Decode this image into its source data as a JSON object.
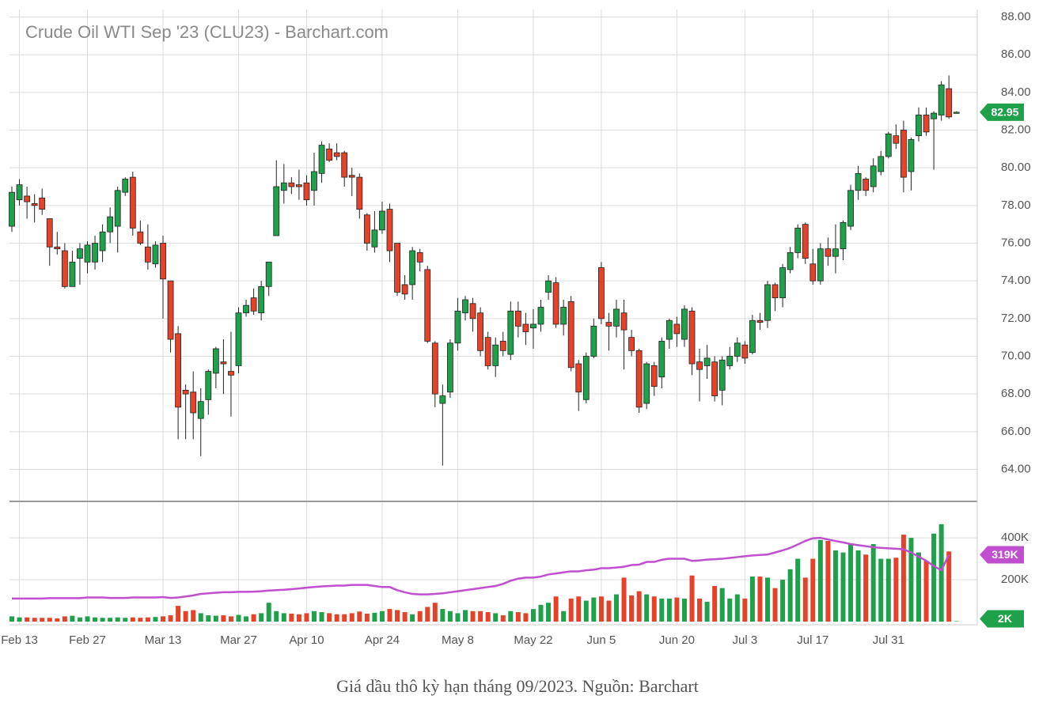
{
  "chart_data": {
    "type": "candlestick",
    "title": "Crude Oil WTI Sep '23 (CLU23) - Barchart.com",
    "caption": "Giá dầu thô kỳ hạn tháng 09/2023. Nguồn: Barchart",
    "up_color": "#1fa04a",
    "down_color": "#e4432a",
    "grid": true,
    "categories": [
      null,
      "Feb 13",
      null,
      null,
      null,
      null,
      null,
      null,
      null,
      null,
      "Feb 27",
      null,
      null,
      null,
      null,
      null,
      null,
      null,
      null,
      null,
      "Mar 13",
      null,
      null,
      null,
      null,
      null,
      null,
      null,
      null,
      null,
      "Mar 27",
      null,
      null,
      null,
      null,
      null,
      null,
      null,
      null,
      "Apr 10",
      null,
      null,
      null,
      null,
      null,
      null,
      null,
      null,
      null,
      "Apr 24",
      null,
      null,
      null,
      null,
      null,
      null,
      null,
      null,
      null,
      "May 8",
      null,
      null,
      null,
      null,
      null,
      null,
      null,
      null,
      null,
      "May 22",
      null,
      null,
      null,
      null,
      null,
      null,
      null,
      null,
      "Jun 5",
      null,
      null,
      null,
      null,
      null,
      null,
      null,
      null,
      null,
      "Jun 20",
      null,
      null,
      null,
      null,
      null,
      null,
      null,
      null,
      "Jul 3",
      null,
      null,
      null,
      null,
      null,
      null,
      null,
      null,
      "Jul 17",
      null,
      null,
      null,
      null,
      null,
      null,
      null,
      null,
      null,
      "Jul 31",
      null,
      null,
      null,
      null,
      null,
      null,
      null,
      null,
      null
    ],
    "open": [
      76.9,
      78.3,
      78.5,
      78.1,
      78.4,
      77.3,
      75.8,
      75.6,
      73.7,
      75.2,
      75.0,
      75.0,
      75.6,
      76.6,
      76.9,
      78.7,
      79.5,
      76.6,
      75.8,
      74.9,
      76.0,
      74.0,
      71.2,
      68.2,
      68.1,
      66.7,
      67.7,
      69.1,
      69.7,
      69.2,
      69.5,
      72.3,
      73.1,
      72.3,
      73.7,
      76.4,
      78.8,
      79.2,
      79.1,
      79.2,
      78.8,
      79.7,
      81.0,
      80.8,
      80.8,
      79.6,
      79.5,
      77.5,
      75.8,
      76.7,
      77.8,
      76.0,
      73.8,
      73.8,
      75.5,
      74.6,
      70.7,
      67.5,
      68.1,
      70.7,
      72.3,
      72.8,
      72.3,
      71.0,
      69.5,
      70.8,
      70.1,
      72.4,
      71.7,
      71.5,
      71.7,
      73.4,
      73.9,
      71.7,
      72.9,
      69.6,
      67.7,
      70.0,
      74.7,
      71.8,
      71.6,
      72.3,
      71.0,
      70.3,
      67.5,
      69.5,
      68.9,
      70.9,
      71.7,
      70.9,
      72.4,
      69.7,
      69.5,
      69.7,
      68.2,
      69.5,
      70.0,
      70.6,
      70.2,
      71.9,
      71.9,
      73.8,
      73.1,
      74.6,
      75.5,
      77.0,
      74.9,
      74.0,
      75.7,
      75.3,
      75.7,
      76.9,
      78.8,
      79.4,
      79.0,
      79.8,
      80.6,
      81.7,
      82.0,
      79.8,
      81.7,
      82.8,
      82.6,
      82.8,
      84.2,
      82.9
    ],
    "high": [
      79.0,
      79.4,
      79.0,
      78.6,
      78.9,
      77.3,
      76.6,
      76.0,
      75.6,
      76.0,
      76.1,
      76.4,
      77.0,
      77.9,
      79.0,
      79.5,
      79.8,
      77.2,
      77.0,
      76.1,
      76.4,
      74.0,
      71.6,
      68.5,
      69.2,
      68.3,
      69.3,
      70.5,
      70.9,
      71.3,
      72.6,
      73.0,
      73.6,
      74.0,
      75.0,
      80.4,
      80.2,
      79.5,
      79.9,
      79.6,
      80.8,
      81.4,
      81.3,
      81.3,
      80.9,
      80.0,
      79.7,
      77.6,
      77.7,
      78.2,
      78.1,
      76.0,
      74.3,
      75.8,
      75.7,
      74.8,
      70.8,
      68.5,
      70.9,
      73.1,
      73.2,
      73.1,
      72.6,
      71.3,
      71.0,
      71.3,
      72.9,
      72.9,
      72.3,
      72.5,
      73.0,
      74.3,
      74.2,
      73.0,
      73.2,
      69.8,
      70.2,
      72.0,
      75.0,
      72.3,
      73.0,
      73.0,
      71.4,
      70.4,
      69.7,
      69.7,
      71.0,
      72.0,
      72.1,
      72.7,
      72.6,
      70.4,
      70.6,
      70.0,
      70.0,
      70.5,
      71.0,
      70.8,
      72.2,
      72.3,
      74.0,
      73.9,
      74.9,
      75.8,
      77.0,
      77.1,
      75.7,
      76.0,
      76.3,
      77.0,
      77.2,
      79.1,
      80.1,
      79.5,
      80.5,
      80.9,
      81.9,
      82.3,
      82.5,
      81.6,
      83.2,
      83.2,
      83.0,
      84.6,
      84.9,
      83.0
    ],
    "low": [
      76.6,
      78.0,
      77.3,
      77.1,
      77.5,
      74.8,
      75.4,
      73.6,
      73.7,
      73.8,
      74.4,
      74.6,
      75.0,
      76.0,
      75.5,
      78.5,
      76.4,
      75.9,
      74.6,
      74.7,
      72.0,
      70.2,
      65.6,
      65.6,
      65.6,
      64.7,
      66.9,
      68.3,
      68.0,
      66.8,
      69.1,
      72.1,
      72.2,
      71.9,
      73.2,
      76.4,
      78.1,
      78.6,
      78.3,
      78.0,
      78.0,
      79.2,
      80.3,
      80.4,
      79.0,
      78.5,
      77.3,
      75.6,
      75.5,
      76.5,
      75.0,
      73.2,
      73.0,
      73.0,
      74.5,
      70.7,
      67.3,
      64.2,
      67.8,
      70.3,
      71.9,
      71.3,
      70.0,
      69.3,
      68.9,
      70.0,
      69.8,
      71.0,
      70.6,
      70.4,
      71.3,
      73.0,
      71.5,
      71.1,
      69.2,
      67.1,
      67.5,
      69.9,
      71.7,
      70.3,
      71.0,
      69.3,
      70.0,
      67.0,
      67.2,
      67.9,
      68.3,
      70.4,
      70.5,
      70.5,
      69.0,
      67.6,
      68.8,
      67.6,
      67.4,
      69.3,
      69.7,
      69.6,
      70.1,
      71.4,
      71.5,
      72.4,
      72.6,
      74.4,
      75.2,
      74.9,
      73.8,
      73.8,
      74.8,
      74.4,
      75.1,
      76.7,
      78.3,
      78.5,
      78.7,
      79.6,
      80.5,
      81.0,
      78.7,
      78.8,
      81.4,
      81.7,
      79.9,
      82.5,
      82.6,
      82.9
    ],
    "close": [
      78.7,
      79.1,
      78.2,
      78.0,
      77.8,
      75.8,
      75.7,
      73.7,
      75.0,
      75.7,
      75.9,
      76.0,
      76.6,
      77.4,
      78.8,
      79.4,
      76.8,
      76.0,
      75.0,
      75.9,
      74.1,
      70.9,
      67.3,
      68.0,
      67.0,
      67.6,
      69.2,
      70.4,
      69.6,
      69.0,
      72.3,
      72.7,
      72.4,
      73.7,
      75.0,
      79.0,
      79.2,
      79.0,
      79.0,
      78.3,
      79.8,
      81.2,
      80.4,
      80.6,
      79.5,
      79.5,
      77.8,
      76.0,
      76.7,
      77.7,
      75.6,
      73.4,
      73.3,
      75.6,
      75.0,
      70.8,
      68.0,
      67.9,
      70.7,
      72.4,
      73.0,
      72.0,
      70.3,
      69.5,
      70.6,
      70.3,
      72.4,
      71.6,
      71.3,
      71.7,
      72.6,
      74.0,
      71.7,
      72.6,
      69.4,
      68.1,
      70.0,
      71.6,
      72.0,
      71.6,
      72.5,
      71.4,
      70.3,
      67.3,
      69.6,
      68.4,
      70.8,
      71.9,
      71.2,
      72.5,
      69.6,
      69.3,
      69.9,
      67.9,
      69.8,
      70.0,
      70.7,
      69.9,
      71.9,
      71.8,
      73.8,
      73.1,
      74.7,
      75.5,
      76.8,
      75.2,
      74.0,
      75.7,
      75.3,
      75.7,
      77.1,
      78.8,
      79.7,
      78.8,
      80.1,
      80.6,
      81.8,
      81.3,
      79.5,
      81.5,
      82.8,
      81.9,
      82.9,
      84.4,
      82.7,
      82.95
    ],
    "ylim": [
      62.3,
      88.4
    ],
    "yticks": [
      {
        "value": 64,
        "label": "64.00"
      },
      {
        "value": 66,
        "label": "66.00"
      },
      {
        "value": 68,
        "label": "68.00"
      },
      {
        "value": 70,
        "label": "70.00"
      },
      {
        "value": 72,
        "label": "72.00"
      },
      {
        "value": 74,
        "label": "74.00"
      },
      {
        "value": 76,
        "label": "76.00"
      },
      {
        "value": 78,
        "label": "78.00"
      },
      {
        "value": 80,
        "label": "80.00"
      },
      {
        "value": 82,
        "label": "82.00"
      },
      {
        "value": 84,
        "label": "84.00"
      },
      {
        "value": 86,
        "label": "86.00"
      },
      {
        "value": 88,
        "label": "88.00"
      }
    ],
    "volume": {
      "values": [
        25000,
        20000,
        20000,
        18000,
        18000,
        18000,
        15000,
        25000,
        28000,
        20000,
        25000,
        20000,
        18000,
        18000,
        20000,
        18000,
        20000,
        18000,
        20000,
        22000,
        25000,
        30000,
        75000,
        50000,
        55000,
        40000,
        30000,
        28000,
        30000,
        25000,
        32000,
        25000,
        35000,
        40000,
        90000,
        50000,
        40000,
        38000,
        35000,
        40000,
        50000,
        45000,
        40000,
        35000,
        35000,
        40000,
        48000,
        38000,
        42000,
        50000,
        60000,
        55000,
        45000,
        35000,
        50000,
        70000,
        90000,
        60000,
        50000,
        40000,
        55000,
        50000,
        50000,
        45000,
        40000,
        30000,
        50000,
        45000,
        40000,
        60000,
        80000,
        90000,
        120000,
        50000,
        110000,
        120000,
        100000,
        115000,
        120000,
        100000,
        130000,
        210000,
        125000,
        145000,
        130000,
        120000,
        110000,
        110000,
        115000,
        110000,
        220000,
        110000,
        95000,
        170000,
        160000,
        110000,
        130000,
        110000,
        215000,
        215000,
        210000,
        160000,
        200000,
        250000,
        300000,
        210000,
        300000,
        390000,
        385000,
        340000,
        330000,
        370000,
        340000,
        320000,
        370000,
        300000,
        300000,
        305000,
        415000,
        400000,
        330000,
        290000,
        420000,
        465000,
        335000,
        2000
      ],
      "value_label": "2K",
      "ma": [
        110000,
        110000,
        110000,
        110000,
        110000,
        112000,
        112000,
        112000,
        112000,
        112000,
        115000,
        115000,
        115000,
        113000,
        113000,
        113000,
        115000,
        115000,
        115000,
        115000,
        117000,
        113000,
        115000,
        120000,
        125000,
        132000,
        135000,
        138000,
        140000,
        140000,
        142000,
        142000,
        143000,
        145000,
        148000,
        150000,
        152000,
        155000,
        158000,
        162000,
        165000,
        168000,
        170000,
        172000,
        172000,
        175000,
        175000,
        175000,
        170000,
        165000,
        165000,
        150000,
        140000,
        132000,
        130000,
        130000,
        132000,
        135000,
        140000,
        145000,
        150000,
        155000,
        160000,
        165000,
        170000,
        180000,
        195000,
        205000,
        210000,
        210000,
        215000,
        225000,
        230000,
        235000,
        240000,
        240000,
        245000,
        248000,
        255000,
        255000,
        258000,
        262000,
        270000,
        272000,
        285000,
        285000,
        295000,
        300000,
        300000,
        300000,
        290000,
        292000,
        296000,
        298000,
        300000,
        304000,
        308000,
        312000,
        316000,
        318000,
        320000,
        330000,
        340000,
        352000,
        368000,
        385000,
        398000,
        400000,
        392000,
        385000,
        378000,
        370000,
        365000,
        360000,
        355000,
        352000,
        350000,
        348000,
        345000,
        330000,
        310000,
        290000,
        265000,
        245000,
        319000,
        null
      ],
      "ma_color": "#c04fd0",
      "ma_value_label": "319K",
      "ylim": [
        0,
        574000
      ],
      "yticks": [
        {
          "value": 200000,
          "label": "200K"
        },
        {
          "value": 400000,
          "label": "400K"
        }
      ]
    }
  }
}
